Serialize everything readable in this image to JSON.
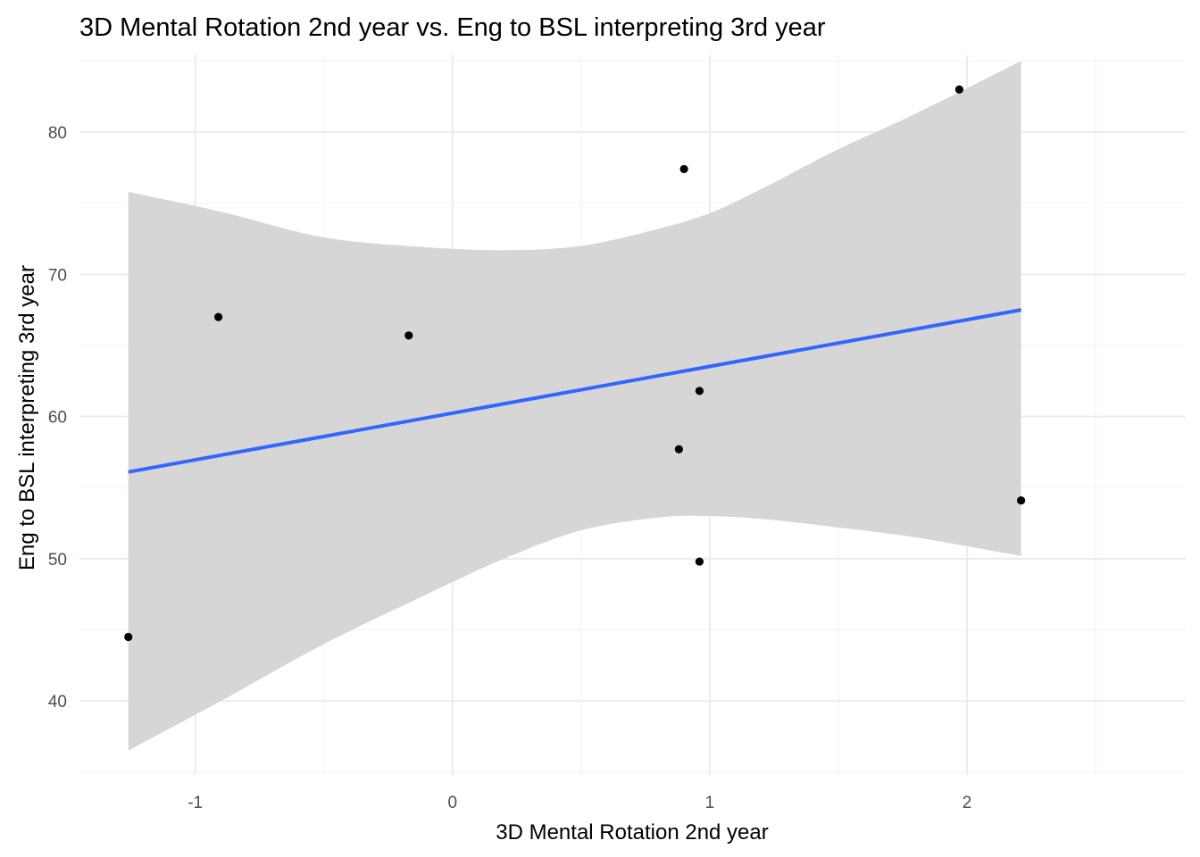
{
  "chart_data": {
    "type": "scatter",
    "title": "3D Mental Rotation 2nd year vs. Eng to BSL interpreting 3rd year",
    "xlabel": "3D Mental Rotation 2nd year",
    "ylabel": "Eng to BSL interpreting 3rd year",
    "xlim": [
      -1.45,
      2.85
    ],
    "ylim": [
      34.8,
      85.4
    ],
    "x_ticks": [
      -1,
      0,
      1,
      2
    ],
    "x_tick_labels": [
      "-1",
      "0",
      "1",
      "2"
    ],
    "x_minor_ticks": [
      -0.5,
      0.5,
      1.5,
      2.5
    ],
    "y_ticks": [
      40,
      50,
      60,
      70,
      80
    ],
    "y_tick_labels": [
      "40",
      "50",
      "60",
      "70",
      "80"
    ],
    "y_minor_ticks": [
      35,
      45,
      55,
      65,
      75,
      85
    ],
    "grid": true,
    "legend": "none",
    "points": [
      {
        "x": -1.26,
        "y": 44.5
      },
      {
        "x": -0.91,
        "y": 67.0
      },
      {
        "x": -0.17,
        "y": 65.7
      },
      {
        "x": 0.88,
        "y": 57.7
      },
      {
        "x": 0.9,
        "y": 77.4
      },
      {
        "x": 0.96,
        "y": 61.8
      },
      {
        "x": 0.96,
        "y": 49.8
      },
      {
        "x": 1.97,
        "y": 83.0
      },
      {
        "x": 2.21,
        "y": 54.1
      }
    ],
    "fit_line": {
      "x": [
        -1.26,
        2.21
      ],
      "y": [
        56.1,
        67.5
      ]
    },
    "confidence_band": {
      "x": [
        -1.26,
        -0.9,
        -0.5,
        -0.1,
        0.2,
        0.5,
        0.8,
        1.0,
        1.2,
        1.5,
        1.8,
        2.21
      ],
      "upper": [
        75.8,
        74.4,
        72.6,
        71.9,
        71.7,
        72.0,
        73.2,
        74.3,
        76.0,
        78.8,
        81.3,
        85.0
      ],
      "lower": [
        36.5,
        40.0,
        44.0,
        47.5,
        50.0,
        52.0,
        52.9,
        53.0,
        52.8,
        52.2,
        51.5,
        50.2
      ]
    },
    "colors": {
      "points": "#000000",
      "fit_line": "#3366ff",
      "confidence_band": "#d6d6d6",
      "grid": "#ebebeb",
      "background": "#ffffff"
    }
  }
}
